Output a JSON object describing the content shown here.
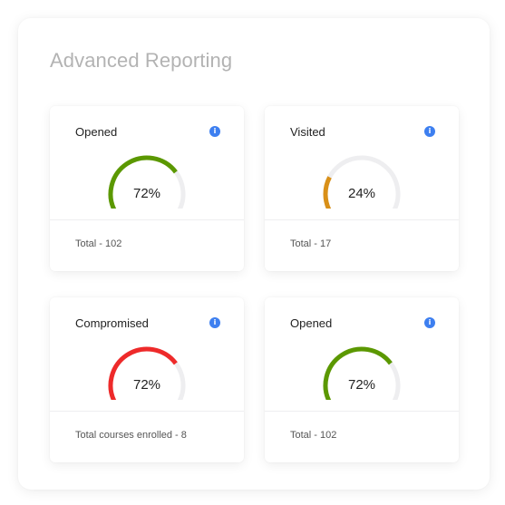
{
  "header": {
    "title": "Advanced Reporting"
  },
  "cards": [
    {
      "title": "Opened",
      "value": "72%",
      "fraction": 0.72,
      "total": "Total - 102",
      "color": "#5b9800"
    },
    {
      "title": "Visited",
      "value": "24%",
      "fraction": 0.24,
      "total": "Total - 17",
      "color": "#d99018"
    },
    {
      "title": "Compromised",
      "value": "72%",
      "fraction": 0.72,
      "total": "Total courses enrolled - 8",
      "color": "#ee2a2a"
    },
    {
      "title": "Opened",
      "value": "72%",
      "fraction": 0.72,
      "total": "Total - 102",
      "color": "#5b9800"
    }
  ],
  "icons": {
    "info": "info-icon",
    "info_glyph": "i"
  },
  "colors": {
    "track": "#eeeef0",
    "info": "#3d7ff0"
  }
}
